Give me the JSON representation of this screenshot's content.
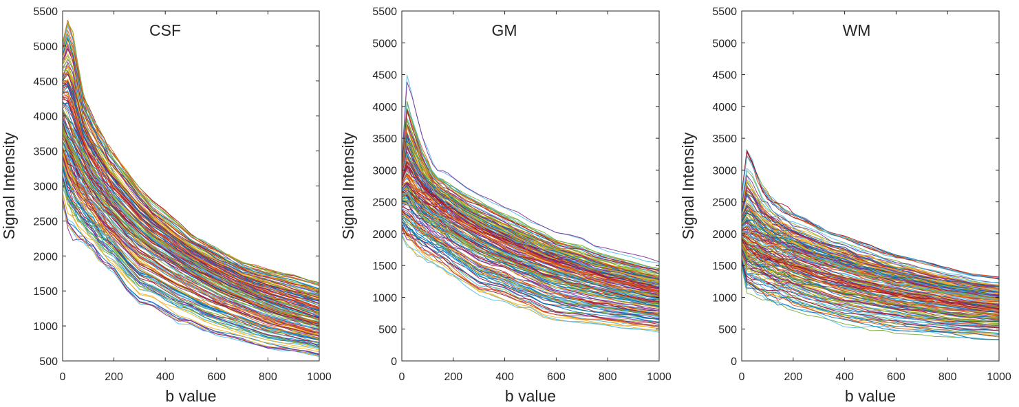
{
  "figure": {
    "panels": [
      {
        "id": "csf",
        "title": "CSF",
        "xlabel": "b value",
        "ylabel": "Signal Intensity",
        "xlim": [
          0,
          1000
        ],
        "ylim": [
          500,
          5500
        ],
        "xticks": [
          0,
          200,
          400,
          600,
          800,
          1000
        ],
        "yticks": [
          500,
          1000,
          1500,
          2000,
          2500,
          3000,
          3500,
          4000,
          4500,
          5000,
          5500
        ]
      },
      {
        "id": "gm",
        "title": "GM",
        "xlabel": "b value",
        "ylabel": "Signal Intensity",
        "xlim": [
          0,
          1000
        ],
        "ylim": [
          0,
          5500
        ],
        "xticks": [
          0,
          200,
          400,
          600,
          800,
          1000
        ],
        "yticks": [
          0,
          500,
          1000,
          1500,
          2000,
          2500,
          3000,
          3500,
          4000,
          4500,
          5000,
          5500
        ]
      },
      {
        "id": "wm",
        "title": "WM",
        "xlabel": "b value",
        "ylabel": "Signal Intensity",
        "xlim": [
          0,
          1000
        ],
        "ylim": [
          0,
          5500
        ],
        "xticks": [
          0,
          200,
          400,
          600,
          800,
          1000
        ],
        "yticks": [
          0,
          500,
          1000,
          1500,
          2000,
          2500,
          3000,
          3500,
          4000,
          4500,
          5000,
          5500
        ]
      }
    ]
  },
  "chart_data": [
    {
      "type": "line",
      "title": "CSF",
      "xlabel": "b value",
      "ylabel": "Signal Intensity",
      "xlim": [
        0,
        1000
      ],
      "ylim": [
        500,
        5500
      ],
      "grid": false,
      "x": [
        0,
        20,
        40,
        60,
        80,
        100,
        120,
        140,
        160,
        180,
        200,
        250,
        300,
        350,
        400,
        450,
        500,
        550,
        600,
        650,
        700,
        750,
        800,
        850,
        900,
        950,
        1000
      ],
      "series_summary": {
        "description": "hundreds of per-voxel decay curves",
        "count_rendered": 180
      },
      "envelope": {
        "upper": [
          5000,
          5300,
          5100,
          4700,
          4300,
          4100,
          3950,
          3800,
          3700,
          3550,
          3450,
          3200,
          2950,
          2750,
          2600,
          2450,
          2300,
          2200,
          2100,
          2000,
          1900,
          1850,
          1800,
          1750,
          1700,
          1650,
          1600
        ],
        "median": [
          3900,
          3700,
          3550,
          3400,
          3280,
          3150,
          3050,
          2950,
          2850,
          2760,
          2680,
          2500,
          2340,
          2200,
          2080,
          1960,
          1850,
          1750,
          1650,
          1560,
          1480,
          1400,
          1330,
          1260,
          1200,
          1140,
          1090
        ],
        "lower": [
          2800,
          2500,
          2400,
          2300,
          2250,
          2150,
          2100,
          2000,
          1900,
          1850,
          1800,
          1550,
          1350,
          1300,
          1200,
          1100,
          1050,
          950,
          900,
          850,
          800,
          750,
          700,
          680,
          650,
          620,
          580
        ]
      },
      "palette": [
        "#0072BD",
        "#D95319",
        "#EDB120",
        "#7E2F8E",
        "#77AC30",
        "#4DBEEE",
        "#A2142F"
      ]
    },
    {
      "type": "line",
      "title": "GM",
      "xlabel": "b value",
      "ylabel": "Signal Intensity",
      "xlim": [
        0,
        1000
      ],
      "ylim": [
        0,
        5500
      ],
      "grid": false,
      "x": [
        0,
        20,
        40,
        60,
        80,
        100,
        120,
        140,
        160,
        180,
        200,
        250,
        300,
        350,
        400,
        450,
        500,
        550,
        600,
        650,
        700,
        750,
        800,
        850,
        900,
        950,
        1000
      ],
      "series_summary": {
        "description": "hundreds of per-voxel decay curves",
        "count_rendered": 180
      },
      "envelope": {
        "upper": [
          3100,
          4400,
          4100,
          3800,
          3500,
          3300,
          3100,
          3000,
          2950,
          2900,
          2850,
          2700,
          2600,
          2500,
          2400,
          2300,
          2200,
          2100,
          2000,
          1950,
          1900,
          1800,
          1750,
          1700,
          1650,
          1600,
          1550
        ],
        "median": [
          2800,
          2900,
          2800,
          2700,
          2630,
          2560,
          2500,
          2440,
          2380,
          2330,
          2280,
          2160,
          2050,
          1950,
          1850,
          1760,
          1680,
          1600,
          1530,
          1460,
          1400,
          1340,
          1280,
          1230,
          1180,
          1130,
          1090
        ],
        "lower": [
          2000,
          1850,
          1800,
          1700,
          1650,
          1600,
          1550,
          1500,
          1450,
          1400,
          1350,
          1200,
          1050,
          1000,
          950,
          850,
          800,
          700,
          650,
          620,
          600,
          580,
          560,
          540,
          520,
          500,
          480
        ]
      },
      "palette": [
        "#0072BD",
        "#D95319",
        "#EDB120",
        "#7E2F8E",
        "#77AC30",
        "#4DBEEE",
        "#A2142F"
      ]
    },
    {
      "type": "line",
      "title": "WM",
      "xlabel": "b value",
      "ylabel": "Signal Intensity",
      "xlim": [
        0,
        1000
      ],
      "ylim": [
        0,
        5500
      ],
      "grid": false,
      "x": [
        0,
        20,
        40,
        60,
        80,
        100,
        120,
        140,
        160,
        180,
        200,
        250,
        300,
        350,
        400,
        450,
        500,
        550,
        600,
        650,
        700,
        750,
        800,
        850,
        900,
        950,
        1000
      ],
      "series_summary": {
        "description": "hundreds of per-voxel decay curves",
        "count_rendered": 180
      },
      "envelope": {
        "upper": [
          2600,
          3250,
          3100,
          2900,
          2700,
          2600,
          2500,
          2450,
          2400,
          2350,
          2300,
          2200,
          2100,
          2000,
          1950,
          1850,
          1800,
          1700,
          1650,
          1600,
          1550,
          1500,
          1450,
          1400,
          1350,
          1320,
          1300
        ],
        "median": [
          2050,
          2050,
          2000,
          1960,
          1920,
          1880,
          1850,
          1810,
          1780,
          1750,
          1720,
          1650,
          1580,
          1520,
          1460,
          1400,
          1350,
          1300,
          1250,
          1210,
          1170,
          1130,
          1090,
          1060,
          1030,
          1000,
          980
        ],
        "lower": [
          1500,
          1100,
          1050,
          1000,
          980,
          950,
          930,
          900,
          880,
          850,
          820,
          750,
          680,
          620,
          580,
          550,
          520,
          490,
          460,
          440,
          420,
          400,
          380,
          360,
          350,
          340,
          330
        ]
      },
      "palette": [
        "#0072BD",
        "#D95319",
        "#EDB120",
        "#7E2F8E",
        "#77AC30",
        "#4DBEEE",
        "#A2142F"
      ]
    }
  ]
}
